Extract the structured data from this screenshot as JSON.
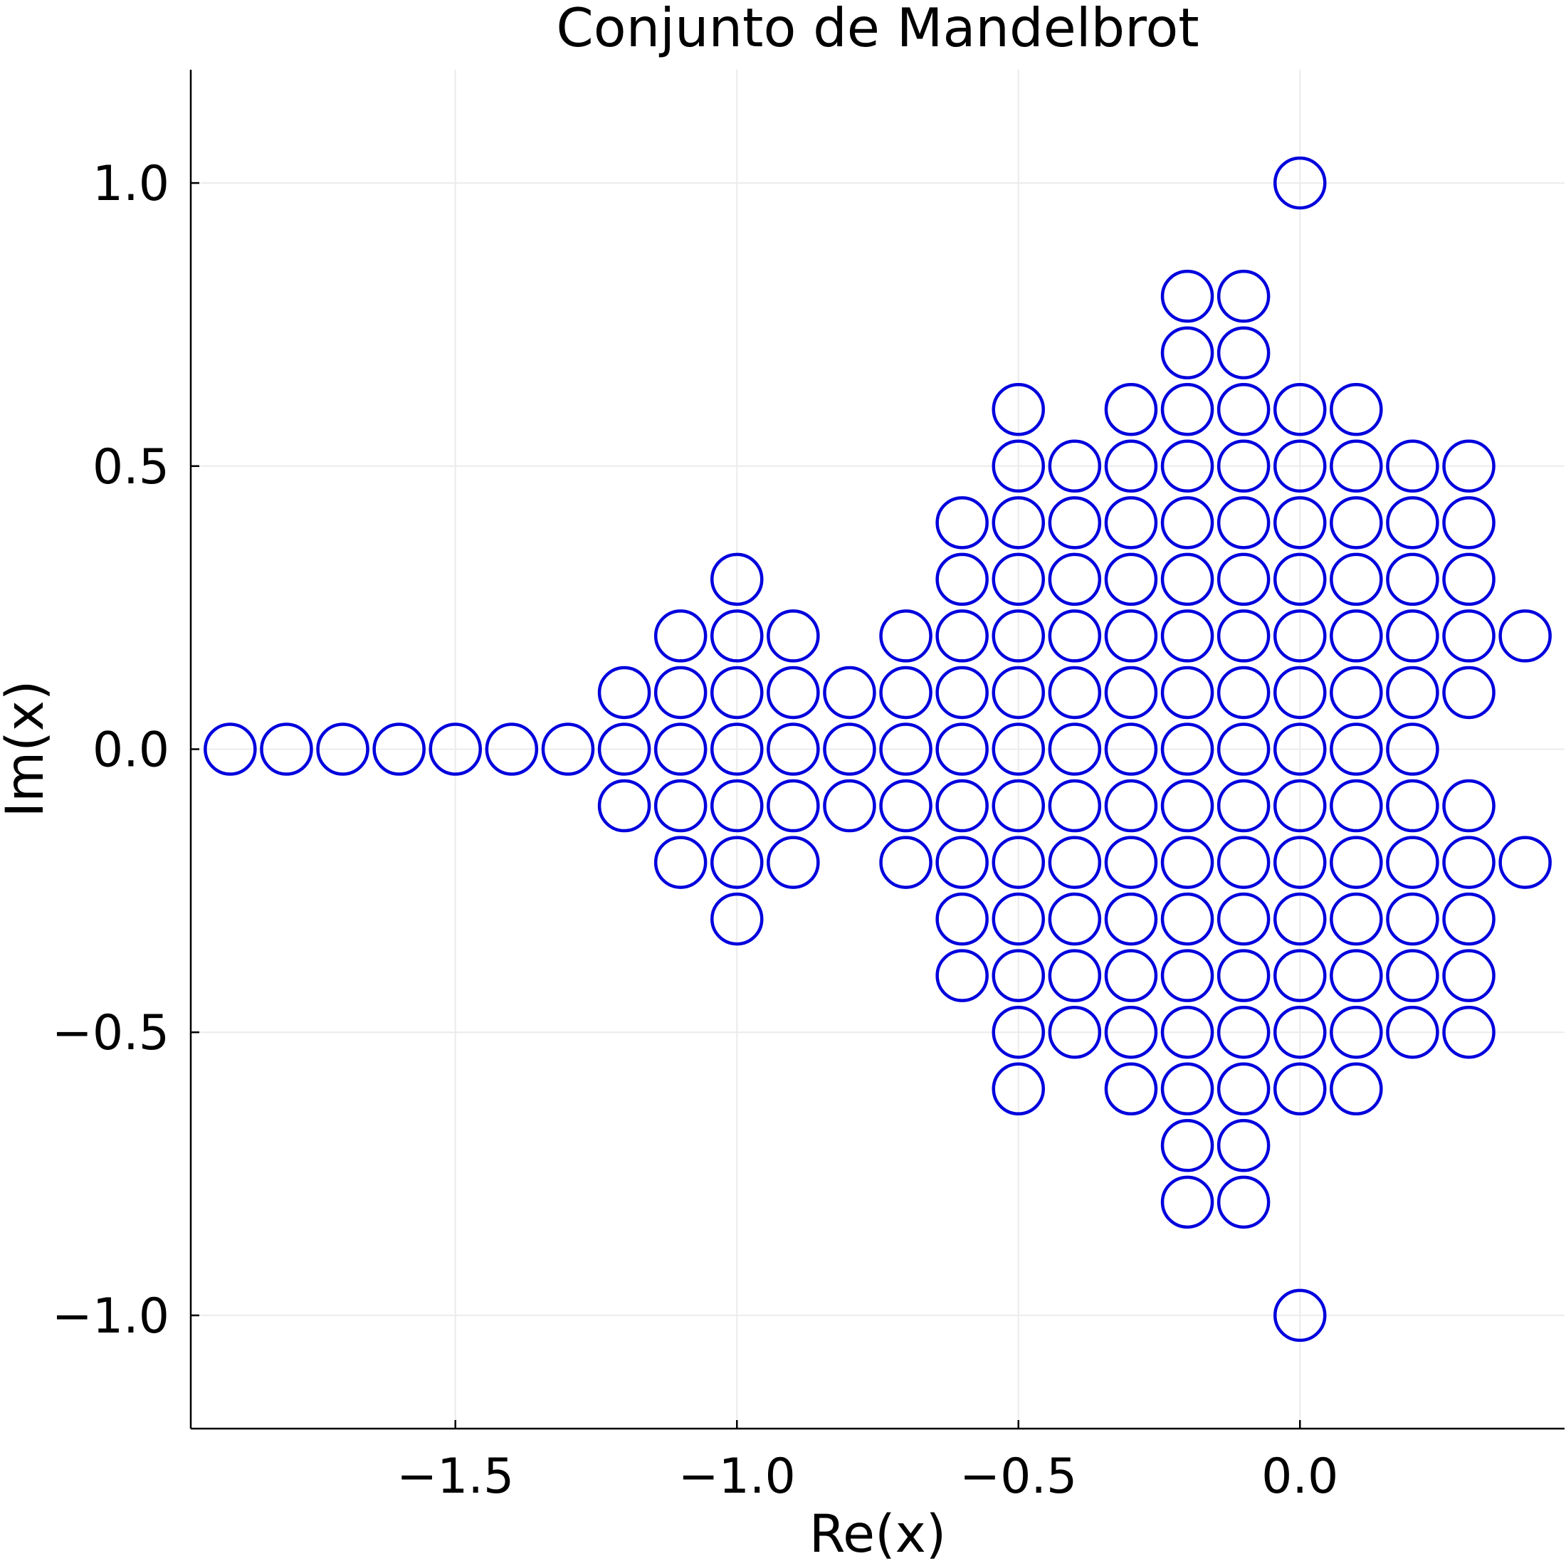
{
  "chart_data": {
    "type": "scatter",
    "title": "Conjunto de Mandelbrot",
    "xlabel": "Re(x)",
    "ylabel": "Im(x)",
    "xlim": [
      -1.97,
      0.47
    ],
    "ylim": [
      -1.2,
      1.2
    ],
    "xticks": [
      -1.5,
      -1.0,
      -0.5,
      0.0
    ],
    "xtick_labels": [
      "−1.5",
      "−1.0",
      "−0.5",
      "0.0"
    ],
    "yticks": [
      -1.0,
      -0.5,
      0.0,
      0.5,
      1.0
    ],
    "ytick_labels": [
      "−1.0",
      "−0.5",
      "0.0",
      "0.5",
      "1.0"
    ],
    "grid": true,
    "legend": "none",
    "marker": "open-circle",
    "marker_color": "#0000dd",
    "points_by_row": [
      {
        "y": 1.0,
        "x": [
          0.0
        ]
      },
      {
        "y": 0.8,
        "x": [
          -0.2,
          -0.1
        ]
      },
      {
        "y": 0.7,
        "x": [
          -0.2,
          -0.1
        ]
      },
      {
        "y": 0.6,
        "x": [
          -0.5,
          -0.3,
          -0.2,
          -0.1,
          0.0,
          0.1
        ]
      },
      {
        "y": 0.5,
        "x": [
          -0.5,
          -0.4,
          -0.3,
          -0.2,
          -0.1,
          0.0,
          0.1,
          0.2,
          0.3
        ]
      },
      {
        "y": 0.4,
        "x": [
          -0.6,
          -0.5,
          -0.4,
          -0.3,
          -0.2,
          -0.1,
          0.0,
          0.1,
          0.2,
          0.3
        ]
      },
      {
        "y": 0.3,
        "x": [
          -1.0,
          -0.6,
          -0.5,
          -0.4,
          -0.3,
          -0.2,
          -0.1,
          0.0,
          0.1,
          0.2,
          0.3
        ]
      },
      {
        "y": 0.2,
        "x": [
          -1.1,
          -1.0,
          -0.9,
          -0.7,
          -0.6,
          -0.5,
          -0.4,
          -0.3,
          -0.2,
          -0.1,
          0.0,
          0.1,
          0.2,
          0.3,
          0.4
        ]
      },
      {
        "y": 0.1,
        "x": [
          -1.2,
          -1.1,
          -1.0,
          -0.9,
          -0.8,
          -0.7,
          -0.6,
          -0.5,
          -0.4,
          -0.3,
          -0.2,
          -0.1,
          0.0,
          0.1,
          0.2,
          0.3
        ]
      },
      {
        "y": 0.0,
        "x": [
          -1.9,
          -1.8,
          -1.7,
          -1.6,
          -1.5,
          -1.4,
          -1.3,
          -1.2,
          -1.1,
          -1.0,
          -0.9,
          -0.8,
          -0.7,
          -0.6,
          -0.5,
          -0.4,
          -0.3,
          -0.2,
          -0.1,
          0.0,
          0.1,
          0.2
        ]
      },
      {
        "y": -0.1,
        "x": [
          -1.2,
          -1.1,
          -1.0,
          -0.9,
          -0.8,
          -0.7,
          -0.6,
          -0.5,
          -0.4,
          -0.3,
          -0.2,
          -0.1,
          0.0,
          0.1,
          0.2,
          0.3
        ]
      },
      {
        "y": -0.2,
        "x": [
          -1.1,
          -1.0,
          -0.9,
          -0.7,
          -0.6,
          -0.5,
          -0.4,
          -0.3,
          -0.2,
          -0.1,
          0.0,
          0.1,
          0.2,
          0.3,
          0.4
        ]
      },
      {
        "y": -0.3,
        "x": [
          -1.0,
          -0.6,
          -0.5,
          -0.4,
          -0.3,
          -0.2,
          -0.1,
          0.0,
          0.1,
          0.2,
          0.3
        ]
      },
      {
        "y": -0.4,
        "x": [
          -0.6,
          -0.5,
          -0.4,
          -0.3,
          -0.2,
          -0.1,
          0.0,
          0.1,
          0.2,
          0.3
        ]
      },
      {
        "y": -0.5,
        "x": [
          -0.5,
          -0.4,
          -0.3,
          -0.2,
          -0.1,
          0.0,
          0.1,
          0.2,
          0.3
        ]
      },
      {
        "y": -0.6,
        "x": [
          -0.5,
          -0.3,
          -0.2,
          -0.1,
          0.0,
          0.1
        ]
      },
      {
        "y": -0.7,
        "x": [
          -0.2,
          -0.1
        ]
      },
      {
        "y": -0.8,
        "x": [
          -0.2,
          -0.1
        ]
      },
      {
        "y": -1.0,
        "x": [
          0.0
        ]
      }
    ]
  }
}
